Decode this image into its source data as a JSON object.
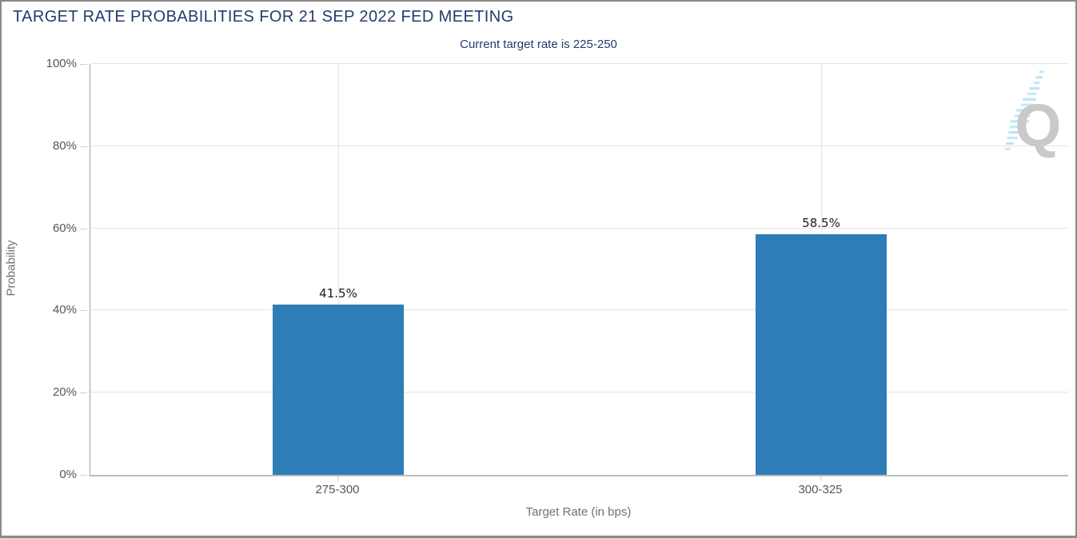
{
  "frame": {
    "background": "#ffffff",
    "border_color": "#8a8a8a"
  },
  "chart_data": {
    "type": "bar",
    "title": "TARGET RATE PROBABILITIES FOR 21 SEP 2022 FED MEETING",
    "subtitle": "Current target rate is 225-250",
    "xlabel": "Target Rate (in bps)",
    "ylabel": "Probability",
    "categories": [
      "275-300",
      "300-325"
    ],
    "values": [
      41.5,
      58.5
    ],
    "value_labels": [
      "41.5%",
      "58.5%"
    ],
    "ylim": [
      0,
      100
    ],
    "ytick_labels": [
      "0%",
      "20%",
      "40%",
      "60%",
      "80%",
      "100%"
    ],
    "grid": true,
    "legend_position": "none",
    "bar_color": "#2e7db7",
    "title_color": "#273a6d",
    "gridline_color": "#e4e4e4"
  },
  "watermark": {
    "letter": "Q",
    "letter_color": "#c9c9c9",
    "stripe_color": "#b5e2f6"
  }
}
